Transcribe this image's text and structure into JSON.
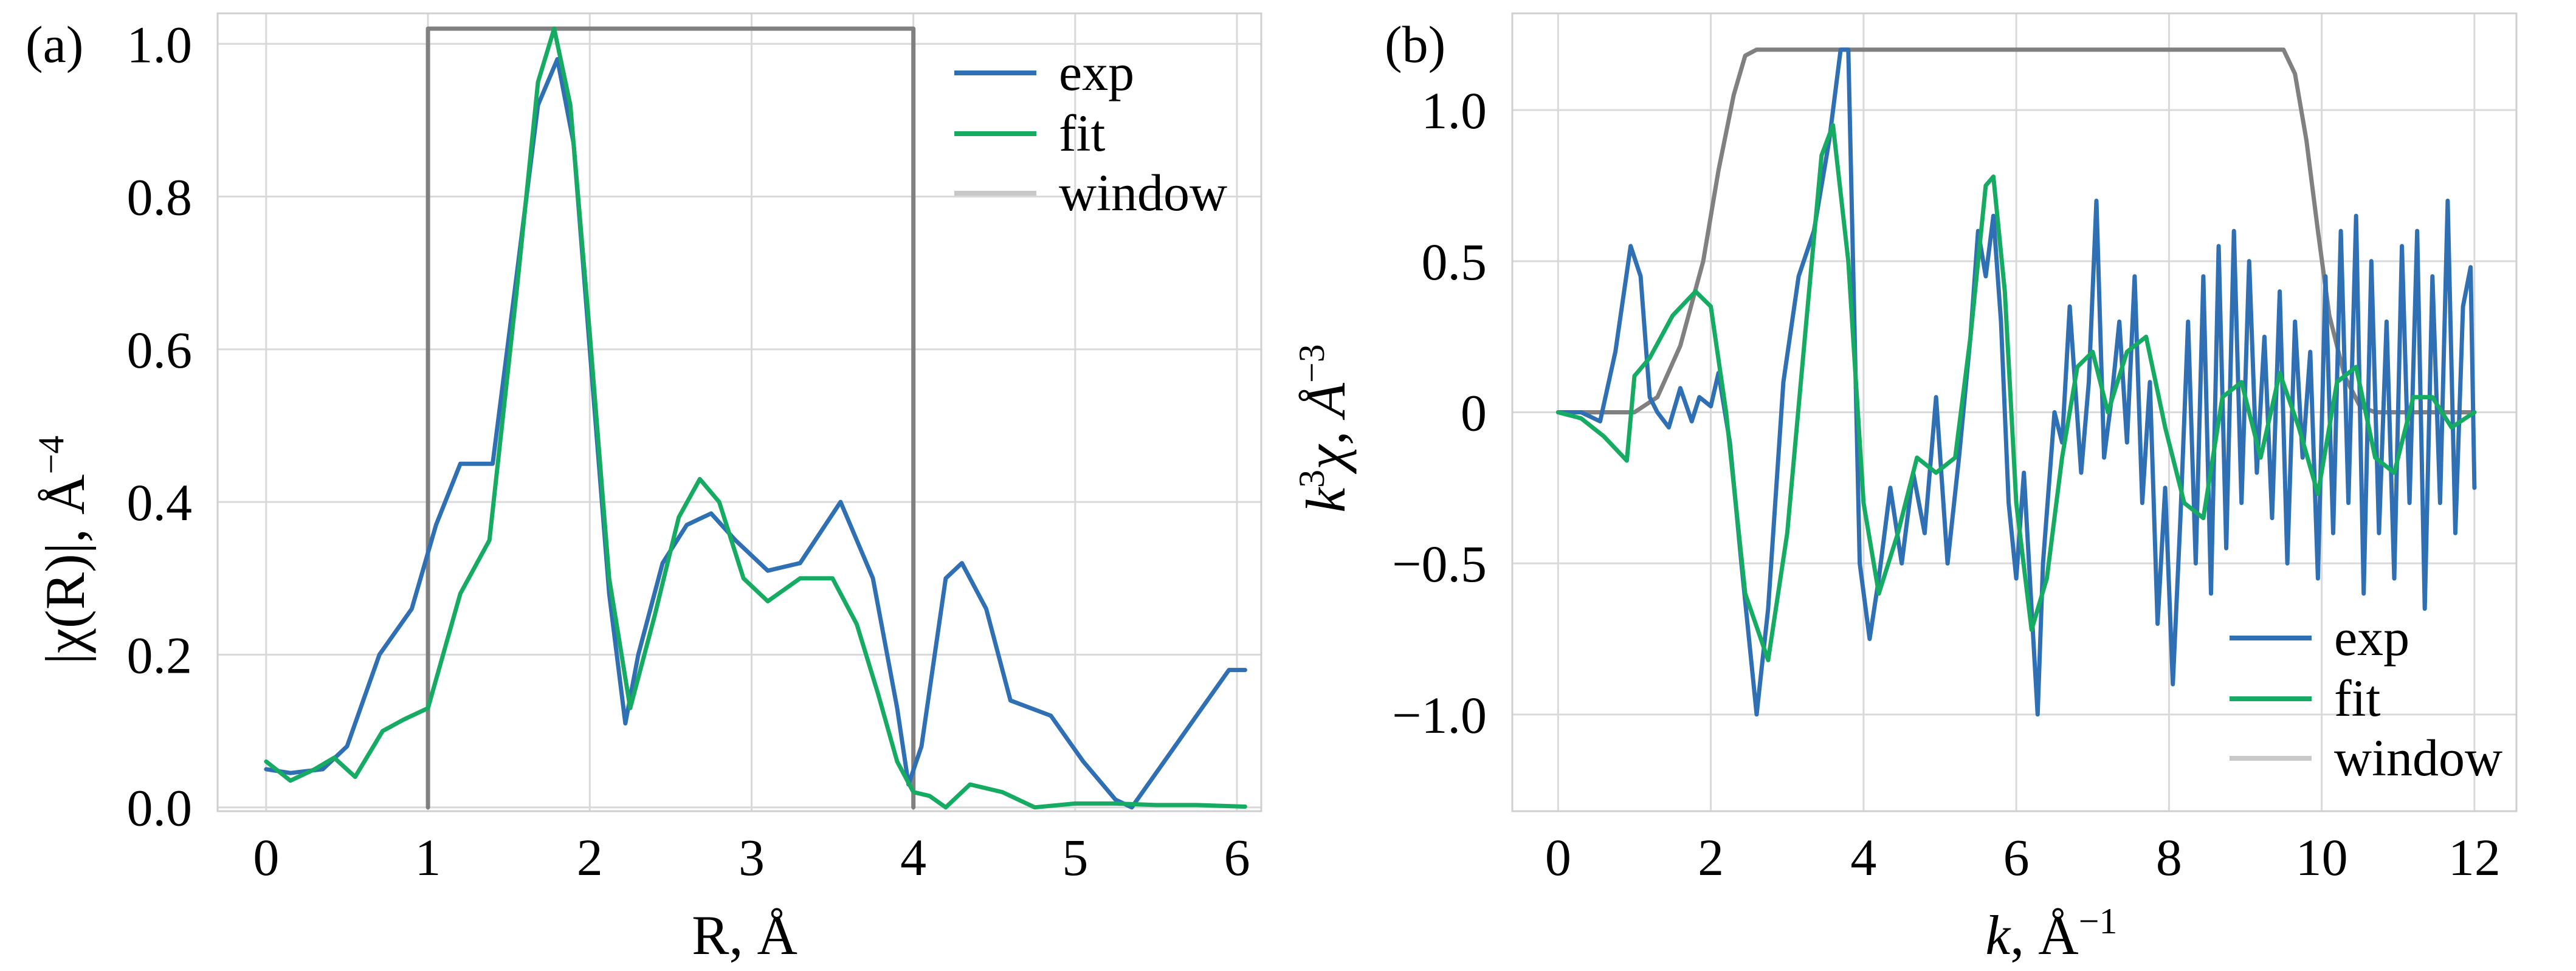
{
  "colors": {
    "exp": "#2f6fb3",
    "fit": "#16ab62",
    "window": "#808080",
    "window_legend": "#c8c8c8"
  },
  "chart_data": [
    {
      "type": "line",
      "panel_label": "(a)",
      "xlabel": "R, Å",
      "ylabel_main": "|χ(R)|, Å",
      "ylabel_sup": "−4",
      "xlim": [
        -0.3,
        6.15
      ],
      "ylim": [
        -0.005,
        1.04
      ],
      "xticks": [
        0,
        1,
        2,
        3,
        4,
        5,
        6
      ],
      "xtick_labels": [
        "0",
        "1",
        "2",
        "3",
        "4",
        "5",
        "6"
      ],
      "yticks": [
        0.0,
        0.2,
        0.4,
        0.6,
        0.8,
        1.0
      ],
      "ytick_labels": [
        "0.0",
        "0.2",
        "0.4",
        "0.6",
        "0.8",
        "1.0"
      ],
      "grid": true,
      "legend_position": "top-right",
      "legend": [
        "exp",
        "fit",
        "window"
      ],
      "series": [
        {
          "name": "exp",
          "color_key": "exp",
          "x": [
            0,
            0.15,
            0.35,
            0.5,
            0.7,
            0.9,
            1.05,
            1.2,
            1.3,
            1.4,
            1.55,
            1.68,
            1.8,
            1.9,
            2.0,
            2.12,
            2.22,
            2.3,
            2.45,
            2.6,
            2.75,
            2.9,
            3.1,
            3.3,
            3.55,
            3.75,
            3.9,
            3.97,
            4.05,
            4.2,
            4.3,
            4.45,
            4.6,
            4.85,
            5.05,
            5.25,
            5.35,
            5.55,
            5.75,
            5.95,
            6.05
          ],
          "y": [
            0.05,
            0.045,
            0.05,
            0.08,
            0.2,
            0.26,
            0.37,
            0.45,
            0.45,
            0.45,
            0.7,
            0.92,
            0.98,
            0.87,
            0.6,
            0.28,
            0.11,
            0.2,
            0.32,
            0.37,
            0.385,
            0.35,
            0.31,
            0.32,
            0.4,
            0.3,
            0.13,
            0.03,
            0.08,
            0.3,
            0.32,
            0.26,
            0.14,
            0.12,
            0.06,
            0.01,
            0.0,
            0.06,
            0.12,
            0.18,
            0.18
          ]
        },
        {
          "name": "fit",
          "color_key": "fit",
          "x": [
            0,
            0.15,
            0.3,
            0.42,
            0.55,
            0.72,
            0.85,
            1.0,
            1.2,
            1.38,
            1.55,
            1.68,
            1.78,
            1.88,
            2.0,
            2.12,
            2.25,
            2.4,
            2.55,
            2.68,
            2.8,
            2.95,
            3.1,
            3.3,
            3.5,
            3.65,
            3.78,
            3.9,
            4.0,
            4.1,
            4.2,
            4.35,
            4.55,
            4.75,
            5.0,
            5.25,
            5.5,
            5.75,
            6.05
          ],
          "y": [
            0.06,
            0.035,
            0.05,
            0.065,
            0.04,
            0.1,
            0.115,
            0.13,
            0.28,
            0.35,
            0.68,
            0.95,
            1.02,
            0.92,
            0.62,
            0.3,
            0.13,
            0.25,
            0.38,
            0.43,
            0.4,
            0.3,
            0.27,
            0.3,
            0.3,
            0.24,
            0.15,
            0.06,
            0.02,
            0.015,
            0.0,
            0.03,
            0.02,
            0.0,
            0.005,
            0.005,
            0.003,
            0.003,
            0.001
          ]
        },
        {
          "name": "window",
          "color_key": "window",
          "x": [
            1,
            1,
            4,
            4
          ],
          "y": [
            0,
            1.02,
            1.02,
            0
          ]
        }
      ]
    },
    {
      "type": "line",
      "panel_label": "(b)",
      "xlabel_main": "k",
      "xlabel_unit": ", Å",
      "xlabel_sup": "−1",
      "ylabel_main": "k",
      "ylabel_sup1": "3",
      "ylabel_mid": "χ, Å",
      "ylabel_sup2": "−3",
      "xlim": [
        -0.6,
        12.55
      ],
      "ylim": [
        -1.32,
        1.32
      ],
      "xticks": [
        0,
        2,
        4,
        6,
        8,
        10,
        12
      ],
      "xtick_labels": [
        "0",
        "2",
        "4",
        "6",
        "8",
        "10",
        "12"
      ],
      "yticks": [
        -1.0,
        -0.5,
        0.0,
        0.5,
        1.0
      ],
      "ytick_labels": [
        "−1.0",
        "−0.5",
        "0",
        "0.5",
        "1.0"
      ],
      "grid": true,
      "legend_position": "bottom-right",
      "legend": [
        "exp",
        "fit",
        "window"
      ],
      "window_top": 1.2,
      "series": [
        {
          "name": "exp",
          "color_key": "exp",
          "x": [
            0,
            0.3,
            0.55,
            0.75,
            0.95,
            1.08,
            1.2,
            1.3,
            1.45,
            1.6,
            1.75,
            1.85,
            2.0,
            2.1,
            2.25,
            2.4,
            2.6,
            2.75,
            2.95,
            3.15,
            3.35,
            3.55,
            3.7,
            3.8,
            3.95,
            4.08,
            4.2,
            4.35,
            4.5,
            4.65,
            4.8,
            4.95,
            5.1,
            5.25,
            5.4,
            5.5,
            5.6,
            5.7,
            5.8,
            5.9,
            6.0,
            6.1,
            6.2,
            6.28,
            6.35,
            6.5,
            6.6,
            6.7,
            6.85,
            6.95,
            7.05,
            7.15,
            7.25,
            7.35,
            7.45,
            7.55,
            7.65,
            7.75,
            7.85,
            7.95,
            8.05,
            8.15,
            8.25,
            8.35,
            8.45,
            8.55,
            8.65,
            8.75,
            8.85,
            8.95,
            9.05,
            9.15,
            9.25,
            9.35,
            9.45,
            9.55,
            9.65,
            9.75,
            9.85,
            9.95,
            10.05,
            10.15,
            10.25,
            10.35,
            10.45,
            10.55,
            10.65,
            10.75,
            10.85,
            10.95,
            11.05,
            11.15,
            11.25,
            11.35,
            11.45,
            11.55,
            11.65,
            11.75,
            11.85,
            11.95,
            12.0
          ],
          "y": [
            0,
            0,
            -0.03,
            0.2,
            0.55,
            0.45,
            0.05,
            0.0,
            -0.05,
            0.08,
            -0.03,
            0.05,
            0.02,
            0.13,
            -0.1,
            -0.5,
            -1.0,
            -0.65,
            0.1,
            0.45,
            0.6,
            0.9,
            1.2,
            1.2,
            -0.5,
            -0.75,
            -0.55,
            -0.25,
            -0.5,
            -0.2,
            -0.4,
            0.05,
            -0.5,
            -0.15,
            0.25,
            0.6,
            0.45,
            0.65,
            0.3,
            -0.3,
            -0.55,
            -0.2,
            -0.65,
            -1.0,
            -0.5,
            0.0,
            -0.1,
            0.35,
            -0.2,
            0.1,
            0.7,
            -0.15,
            0.05,
            0.3,
            -0.1,
            0.45,
            -0.3,
            0.1,
            -0.7,
            -0.25,
            -0.9,
            -0.35,
            0.3,
            -0.5,
            0.45,
            -0.6,
            0.55,
            -0.45,
            0.6,
            -0.3,
            0.5,
            -0.2,
            0.25,
            -0.35,
            0.4,
            -0.5,
            0.3,
            -0.15,
            0.2,
            -0.55,
            0.45,
            -0.4,
            0.6,
            -0.3,
            0.65,
            -0.6,
            0.5,
            -0.4,
            0.3,
            -0.55,
            0.55,
            -0.3,
            0.6,
            -0.65,
            0.45,
            -0.3,
            0.7,
            -0.4,
            0.35,
            0.48,
            -0.25
          ]
        },
        {
          "name": "fit",
          "color_key": "fit",
          "x": [
            0,
            0.3,
            0.6,
            0.9,
            1.0,
            1.2,
            1.5,
            1.8,
            2.0,
            2.2,
            2.45,
            2.75,
            3.0,
            3.25,
            3.45,
            3.6,
            3.8,
            4.0,
            4.2,
            4.45,
            4.7,
            4.95,
            5.2,
            5.4,
            5.6,
            5.7,
            5.85,
            6.0,
            6.2,
            6.4,
            6.6,
            6.8,
            7.0,
            7.2,
            7.45,
            7.7,
            7.95,
            8.2,
            8.45,
            8.7,
            8.95,
            9.2,
            9.45,
            9.7,
            9.95,
            10.2,
            10.45,
            10.7,
            10.95,
            11.2,
            11.45,
            11.7,
            12.0
          ],
          "y": [
            0,
            -0.02,
            -0.08,
            -0.16,
            0.12,
            0.18,
            0.32,
            0.4,
            0.35,
            0.0,
            -0.6,
            -0.82,
            -0.4,
            0.3,
            0.85,
            0.95,
            0.5,
            -0.3,
            -0.6,
            -0.4,
            -0.15,
            -0.2,
            -0.15,
            0.25,
            0.75,
            0.78,
            0.4,
            -0.3,
            -0.72,
            -0.55,
            -0.15,
            0.15,
            0.2,
            0.0,
            0.2,
            0.25,
            -0.05,
            -0.3,
            -0.35,
            0.05,
            0.1,
            -0.15,
            0.13,
            -0.05,
            -0.27,
            0.1,
            0.15,
            -0.15,
            -0.2,
            0.05,
            0.05,
            -0.05,
            0.0
          ]
        },
        {
          "name": "window",
          "color_key": "window",
          "x": [
            0,
            1.0,
            1.3,
            1.6,
            1.9,
            2.1,
            2.3,
            2.45,
            2.6,
            9.5,
            9.65,
            9.8,
            9.95,
            10.1,
            10.3,
            10.5,
            10.7,
            12.0
          ],
          "y": [
            0,
            0,
            0.05,
            0.22,
            0.5,
            0.8,
            1.05,
            1.18,
            1.2,
            1.2,
            1.12,
            0.9,
            0.6,
            0.32,
            0.12,
            0.02,
            0,
            0
          ]
        }
      ]
    }
  ]
}
